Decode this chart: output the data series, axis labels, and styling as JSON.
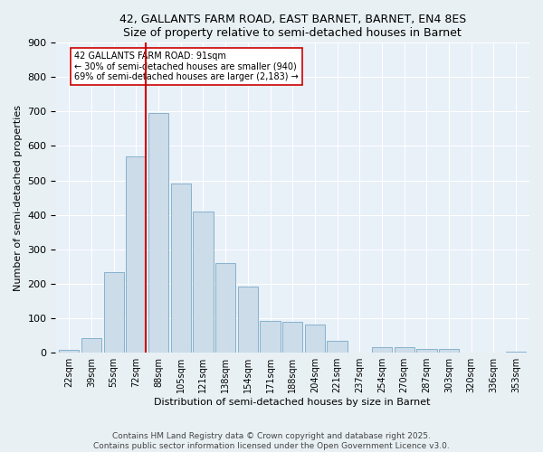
{
  "title1": "42, GALLANTS FARM ROAD, EAST BARNET, BARNET, EN4 8ES",
  "title2": "Size of property relative to semi-detached houses in Barnet",
  "xlabel": "Distribution of semi-detached houses by size in Barnet",
  "ylabel": "Number of semi-detached properties",
  "bar_labels": [
    "22sqm",
    "39sqm",
    "55sqm",
    "72sqm",
    "88sqm",
    "105sqm",
    "121sqm",
    "138sqm",
    "154sqm",
    "171sqm",
    "188sqm",
    "204sqm",
    "221sqm",
    "237sqm",
    "254sqm",
    "270sqm",
    "287sqm",
    "303sqm",
    "320sqm",
    "336sqm",
    "353sqm"
  ],
  "bar_values": [
    8,
    42,
    235,
    570,
    695,
    490,
    410,
    260,
    193,
    93,
    90,
    83,
    35,
    0,
    15,
    17,
    11,
    12,
    0,
    0,
    3
  ],
  "bar_color": "#ccdce8",
  "bar_edge_color": "#7aaac8",
  "vline_color": "#cc0000",
  "annotation_text": "42 GALLANTS FARM ROAD: 91sqm\n← 30% of semi-detached houses are smaller (940)\n69% of semi-detached houses are larger (2,183) →",
  "annotation_box_color": "#ffffff",
  "annotation_box_edge": "#cc0000",
  "ylim": [
    0,
    900
  ],
  "yticks": [
    0,
    100,
    200,
    300,
    400,
    500,
    600,
    700,
    800,
    900
  ],
  "footer1": "Contains HM Land Registry data © Crown copyright and database right 2025.",
  "footer2": "Contains public sector information licensed under the Open Government Licence v3.0.",
  "bg_color": "#e8f0f4",
  "plot_bg_color": "#e8f0f8"
}
